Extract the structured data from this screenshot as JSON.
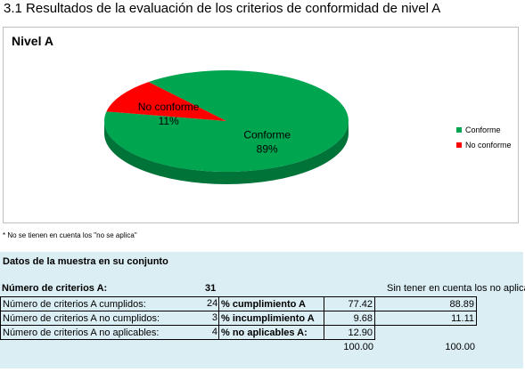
{
  "page": {
    "title": "3.1 Resultados de la evaluación de los criterios de conformidad de nivel A",
    "note": "* No se tienen en cuenta los \"no se aplica\""
  },
  "chart_data": {
    "type": "pie",
    "title": "Nivel A",
    "slices": [
      {
        "name": "Conforme",
        "value": 89,
        "label": "89%",
        "color": "#00a550"
      },
      {
        "name": "No conforme",
        "value": 11,
        "label": "11%",
        "color": "#ff0000"
      }
    ],
    "legend_position": "right",
    "three_d": true
  },
  "sample": {
    "title": "Datos de la muestra en su conjunto",
    "header_label": "Número de criterios A:",
    "header_value": "31",
    "note_no_aplica": "Sin tener en cuenta los no aplica",
    "rows": [
      {
        "label": "Número de criterios A cumplidos:",
        "count": "24",
        "metric": "% cumplimiento A",
        "pct": "77.42",
        "pct_excl": "88.89"
      },
      {
        "label": "Número de criterios A no cumplidos:",
        "count": "3",
        "metric": "% incumplimiento A",
        "pct": "9.68",
        "pct_excl": "11.11"
      },
      {
        "label": "Número de criterios A no aplicables:",
        "count": "4",
        "metric": "% no aplicables A:",
        "pct": "12.90",
        "pct_excl": ""
      }
    ],
    "total_pct": "100.00",
    "total_pct_excl": "100.00"
  }
}
